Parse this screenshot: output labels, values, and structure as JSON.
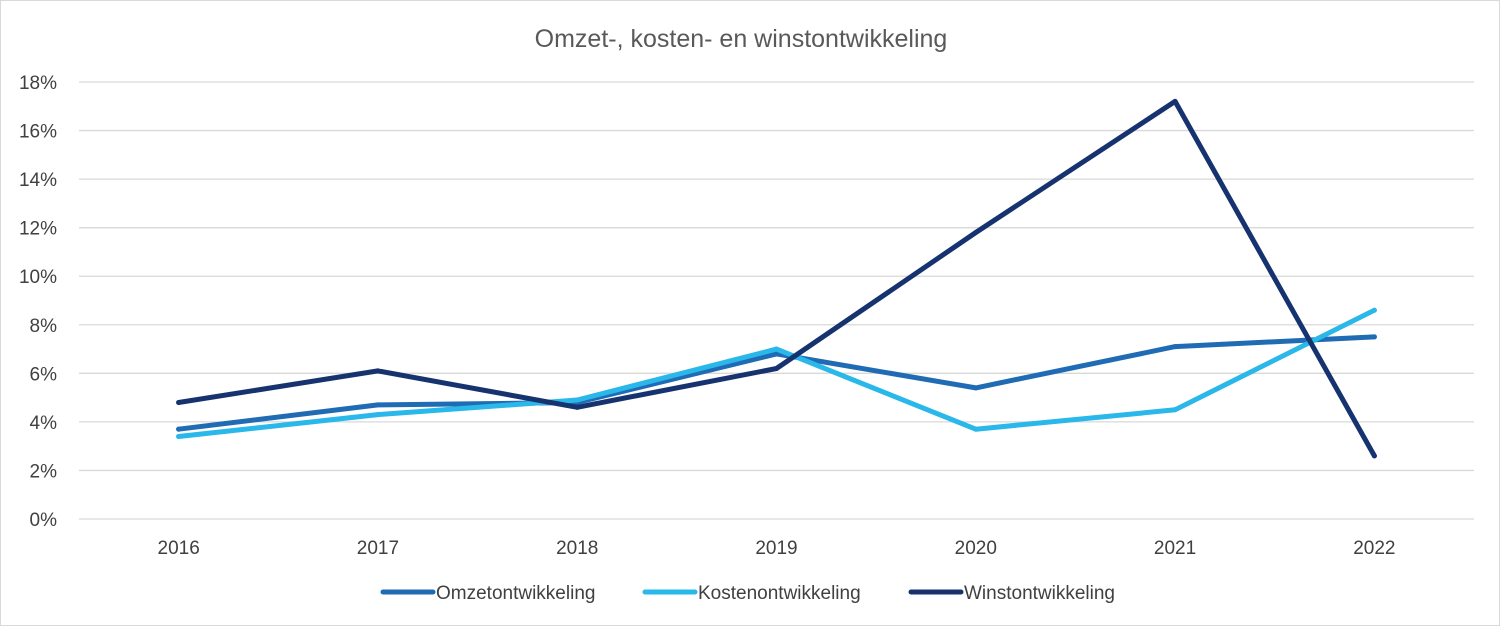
{
  "chart_data": {
    "type": "line",
    "title": "Omzet-, kosten- en winstontwikkeling",
    "x": [
      "2016",
      "2017",
      "2018",
      "2019",
      "2020",
      "2021",
      "2022"
    ],
    "y_ticks": [
      "0%",
      "2%",
      "4%",
      "6%",
      "8%",
      "10%",
      "12%",
      "14%",
      "16%",
      "18%"
    ],
    "ylim": [
      0,
      18
    ],
    "y_unit": "%",
    "grid": true,
    "legend_position": "bottom",
    "series": [
      {
        "name": "Omzetontwikkeling",
        "color": "#1f6bb4",
        "values": [
          3.7,
          4.7,
          4.8,
          6.8,
          5.4,
          7.1,
          7.5
        ]
      },
      {
        "name": "Kostenontwikkeling",
        "color": "#2ab7ea",
        "values": [
          3.4,
          4.3,
          4.9,
          7.0,
          3.7,
          4.5,
          8.6
        ]
      },
      {
        "name": "Winstontwikkeling",
        "color": "#16336f",
        "values": [
          4.8,
          6.1,
          4.6,
          6.2,
          11.8,
          17.2,
          2.6
        ]
      }
    ]
  }
}
